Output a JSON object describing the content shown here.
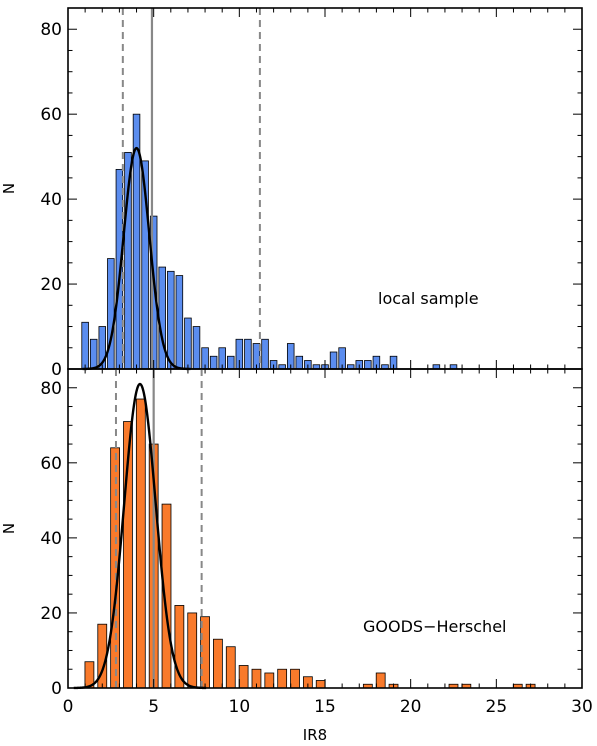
{
  "chart_data": [
    {
      "type": "bar",
      "label": "local sample",
      "ylabel": "N",
      "xlabel": "",
      "xlim": [
        0,
        30
      ],
      "ylim": [
        0,
        85
      ],
      "yticks": [
        "0",
        "20",
        "40",
        "60",
        "80"
      ],
      "bar_color": "#5b8def",
      "bin_width": 0.5,
      "x": [
        1.0,
        1.5,
        2.0,
        2.5,
        3.0,
        3.5,
        4.0,
        4.5,
        5.0,
        5.5,
        6.0,
        6.5,
        7.0,
        7.5,
        8.0,
        8.5,
        9.0,
        9.5,
        10.0,
        10.5,
        11.0,
        11.5,
        12.0,
        12.5,
        13.0,
        13.5,
        14.0,
        14.5,
        15.0,
        15.5,
        16.0,
        16.5,
        17.0,
        17.5,
        18.0,
        18.5,
        19.0,
        19.5,
        20.0,
        21.5,
        22.0,
        22.5
      ],
      "values": [
        11,
        7,
        10,
        26,
        47,
        51,
        60,
        49,
        36,
        24,
        23,
        22,
        12,
        10,
        5,
        3,
        5,
        3,
        7,
        7,
        6,
        7,
        2,
        1,
        6,
        3,
        2,
        1,
        1,
        4,
        5,
        1,
        2,
        2,
        3,
        1,
        3,
        0,
        0,
        1,
        0,
        1
      ],
      "gaussian": {
        "mean": 4.0,
        "sigma": 0.75,
        "amplitude": 52
      },
      "median_line": 4.9,
      "dashed_lines": [
        3.2,
        11.2
      ]
    },
    {
      "type": "bar",
      "label": "GOODS−Herschel",
      "ylabel": "N",
      "xlabel": "IR8",
      "xlim": [
        0,
        30
      ],
      "ylim": [
        0,
        85
      ],
      "xticks": [
        "0",
        "5",
        "10",
        "15",
        "20",
        "25",
        "30"
      ],
      "yticks": [
        "0",
        "20",
        "40",
        "60",
        "80"
      ],
      "bar_color": "#f97a2b",
      "bin_width": 0.67,
      "x": [
        1.25,
        2.0,
        2.75,
        3.5,
        4.25,
        5.0,
        5.75,
        6.5,
        7.25,
        8.0,
        8.75,
        9.5,
        10.25,
        11.0,
        11.75,
        12.5,
        13.25,
        14.0,
        14.75,
        17.5,
        18.25,
        19.0,
        22.5,
        23.25,
        26.25,
        27.0
      ],
      "values": [
        7,
        17,
        64,
        71,
        77,
        65,
        49,
        22,
        20,
        19,
        13,
        11,
        6,
        5,
        4,
        5,
        5,
        3,
        2,
        1,
        4,
        1,
        1,
        1,
        1,
        1
      ],
      "gaussian": {
        "mean": 4.2,
        "sigma": 0.92,
        "amplitude": 81
      },
      "median_line": 5.0,
      "dashed_lines": [
        2.8,
        7.8
      ]
    }
  ]
}
